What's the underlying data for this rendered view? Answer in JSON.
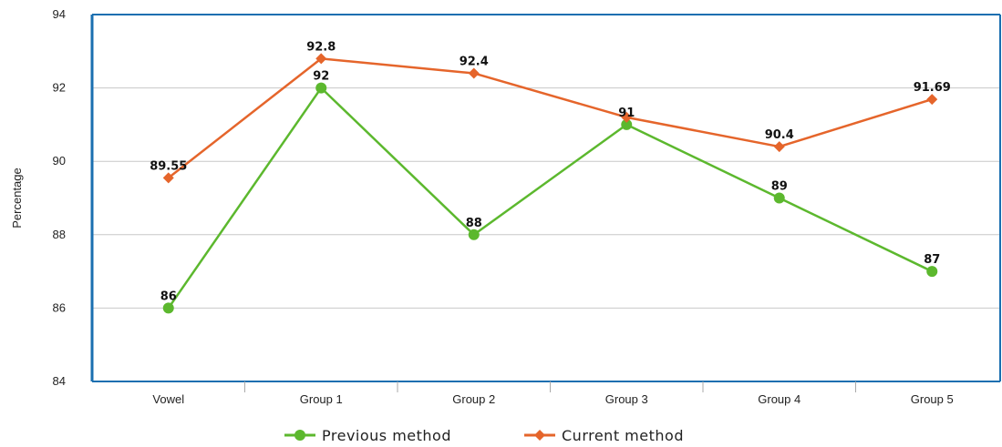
{
  "chart_data": {
    "type": "line",
    "title": "",
    "xlabel": "",
    "ylabel": "Percentage",
    "ylim": [
      84,
      94
    ],
    "yticks": [
      84,
      86,
      88,
      90,
      92,
      94
    ],
    "grid": true,
    "legend_position": "bottom",
    "categories": [
      "Vowel",
      "Group 1",
      "Group 2",
      "Group 3",
      "Group 4",
      "Group 5"
    ],
    "series": [
      {
        "name": "Previous method",
        "color": "#5cb82e",
        "marker": "circle",
        "values": [
          86,
          92,
          88,
          91,
          89,
          87
        ],
        "labels": [
          "86",
          "92",
          "88",
          "91",
          "89",
          "87"
        ]
      },
      {
        "name": "Current method",
        "color": "#e5652b",
        "marker": "diamond",
        "values": [
          89.55,
          92.8,
          92.4,
          91.2,
          90.4,
          91.69
        ],
        "labels": [
          "89.55",
          "92.8",
          "92.4",
          "",
          "90.4",
          "91.69"
        ]
      }
    ],
    "colors": {
      "frame": "#1a6fb0",
      "grid": "#c8c8c8"
    }
  }
}
